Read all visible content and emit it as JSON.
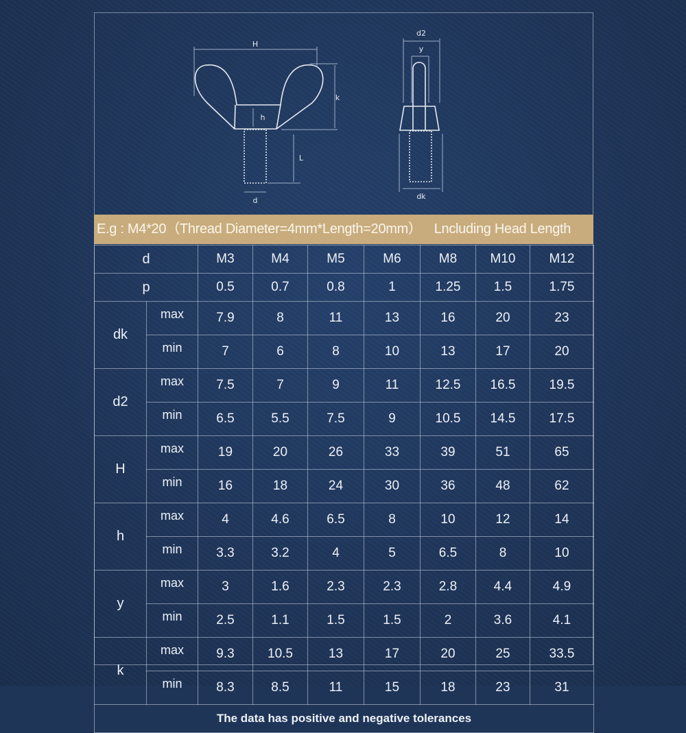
{
  "diagram": {
    "front_labels": {
      "H": "H",
      "k": "k",
      "h": "h",
      "L": "L",
      "d": "d"
    },
    "side_labels": {
      "d2": "d2",
      "y": "y",
      "dk": "dk"
    }
  },
  "banner": {
    "example": "E.g : M4*20（Thread Diameter=4mm*Length=20mm）",
    "note": "Lncluding Head Length"
  },
  "table": {
    "header_label": "d",
    "sizes": [
      "M3",
      "M4",
      "M5",
      "M6",
      "M8",
      "M10",
      "M12"
    ],
    "pitch_label": "p",
    "pitch": [
      "0.5",
      "0.7",
      "0.8",
      "1",
      "1.25",
      "1.5",
      "1.75"
    ],
    "max_label": "max",
    "min_label": "min",
    "groups": [
      {
        "name": "dk",
        "max": [
          "7.9",
          "8",
          "11",
          "13",
          "16",
          "20",
          "23"
        ],
        "min": [
          "7",
          "6",
          "8",
          "10",
          "13",
          "17",
          "20"
        ]
      },
      {
        "name": "d2",
        "max": [
          "7.5",
          "7",
          "9",
          "11",
          "12.5",
          "16.5",
          "19.5"
        ],
        "min": [
          "6.5",
          "5.5",
          "7.5",
          "9",
          "10.5",
          "14.5",
          "17.5"
        ]
      },
      {
        "name": "H",
        "max": [
          "19",
          "20",
          "26",
          "33",
          "39",
          "51",
          "65"
        ],
        "min": [
          "16",
          "18",
          "24",
          "30",
          "36",
          "48",
          "62"
        ]
      },
      {
        "name": "h",
        "max": [
          "4",
          "4.6",
          "6.5",
          "8",
          "10",
          "12",
          "14"
        ],
        "min": [
          "3.3",
          "3.2",
          "4",
          "5",
          "6.5",
          "8",
          "10"
        ]
      },
      {
        "name": "y",
        "max": [
          "3",
          "1.6",
          "2.3",
          "2.3",
          "2.8",
          "4.4",
          "4.9"
        ],
        "min": [
          "2.5",
          "1.1",
          "1.5",
          "1.5",
          "2",
          "3.6",
          "4.1"
        ]
      },
      {
        "name": "k",
        "max": [
          "9.3",
          "10.5",
          "13",
          "17",
          "20",
          "25",
          "33.5"
        ],
        "min": [
          "8.3",
          "8.5",
          "11",
          "15",
          "18",
          "23",
          "31"
        ]
      }
    ],
    "footer": "The data has positive and negative tolerances"
  },
  "colors": {
    "background": "#1f3558",
    "banner": "#c8ac7d",
    "lines": "#cdd7e6"
  }
}
